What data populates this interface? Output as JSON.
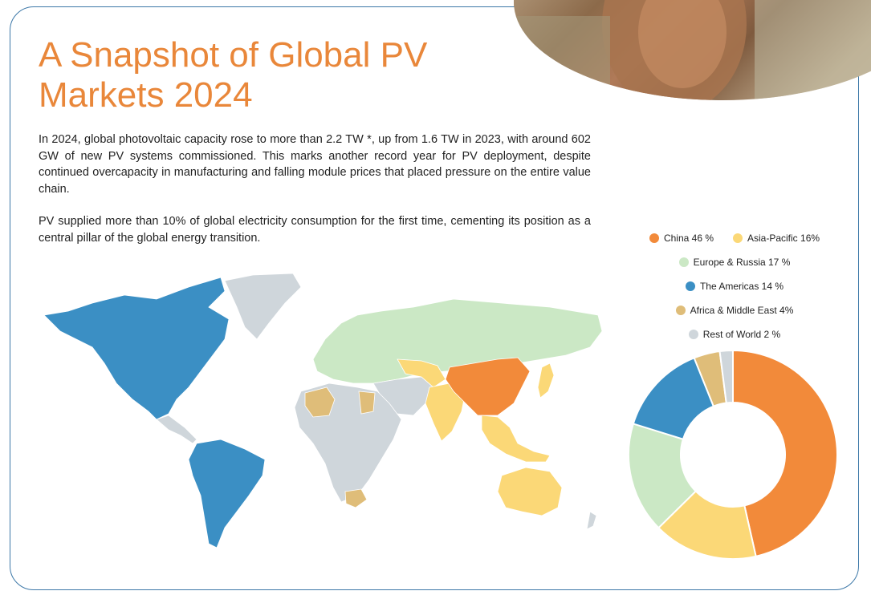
{
  "header": {
    "title": "A Snapshot of Global PV Markets 2024"
  },
  "body": {
    "paragraph_1": "In 2024, global photovoltaic capacity rose to more than 2.2 TW *, up from 1.6 TW in 2023, with around 602 GW of new PV systems commissioned. This marks another record year for PV deployment, despite continued overcapacity in manufacturing and falling module prices that placed pressure on the entire value chain.",
    "paragraph_2": "PV supplied more than 10% of global electricity consumption for the first time, cementing its position as a central pillar of the global energy transition."
  },
  "colors": {
    "china": "#f28a3a",
    "asia_pacific": "#fbd877",
    "europe_russia": "#cbe8c5",
    "americas": "#3b8fc4",
    "africa_middle_east": "#dfbd79",
    "rest_of_world": "#cfd6db",
    "title": "#e9873a"
  },
  "chart_data": {
    "type": "pie",
    "donut": true,
    "title": "",
    "legend_placement": "top",
    "series": [
      {
        "name": "China 46 %",
        "value": 46,
        "color": "#f28a3a"
      },
      {
        "name": "Asia-Pacific 16%",
        "value": 16,
        "color": "#fbd877"
      },
      {
        "name": "Europe & Russia 17 %",
        "value": 17,
        "color": "#cbe8c5"
      },
      {
        "name": "The Americas 14 %",
        "value": 14,
        "color": "#3b8fc4"
      },
      {
        "name": "Africa & Middle East 4%",
        "value": 4,
        "color": "#dfbd79"
      },
      {
        "name": "Rest of World 2 %",
        "value": 2,
        "color": "#cfd6db"
      }
    ]
  }
}
